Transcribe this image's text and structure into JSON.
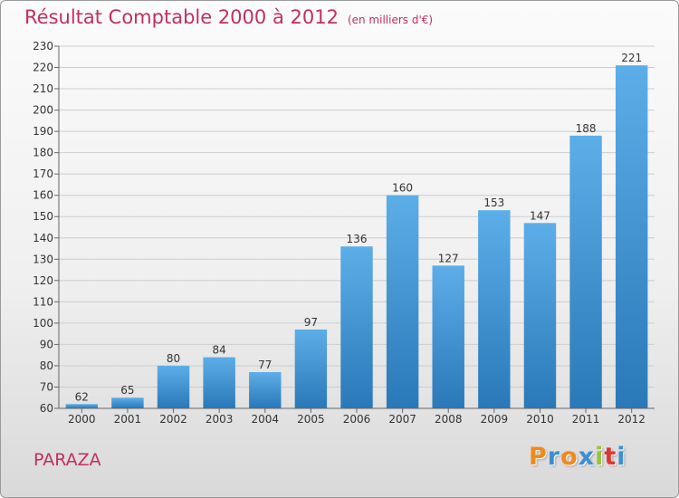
{
  "header": {
    "title": "Résultat Comptable 2000 à 2012",
    "unit": "(en milliers d'€)"
  },
  "footer": {
    "place": "PARAZA",
    "logo": [
      "P",
      "r",
      "o",
      "x",
      "i",
      "t",
      "i"
    ]
  },
  "colors": {
    "title": "#c2305e",
    "bar_top": "#5caee8",
    "bar_bottom": "#2a78b8",
    "grid": "#cccccc",
    "logo": [
      "#f08a1c",
      "#3c8fd1",
      "#f08a1c",
      "#3c8fd1",
      "#9ac23c",
      "#e0342e",
      "#3c8fd1"
    ]
  },
  "chart_data": {
    "type": "bar",
    "title": "Résultat Comptable 2000 à 2012",
    "subtitle": "(en milliers d'€)",
    "categories": [
      "2000",
      "2001",
      "2002",
      "2003",
      "2004",
      "2005",
      "2006",
      "2007",
      "2008",
      "2009",
      "2010",
      "2011",
      "2012"
    ],
    "values": [
      62,
      65,
      80,
      84,
      77,
      97,
      136,
      160,
      127,
      153,
      147,
      188,
      221
    ],
    "xlabel": "",
    "ylabel": "",
    "ylim": [
      60,
      230
    ],
    "yticks": [
      60,
      70,
      80,
      90,
      100,
      110,
      120,
      130,
      140,
      150,
      160,
      170,
      180,
      190,
      200,
      210,
      220,
      230
    ],
    "grid": true,
    "data_labels": true,
    "legend": "none"
  }
}
